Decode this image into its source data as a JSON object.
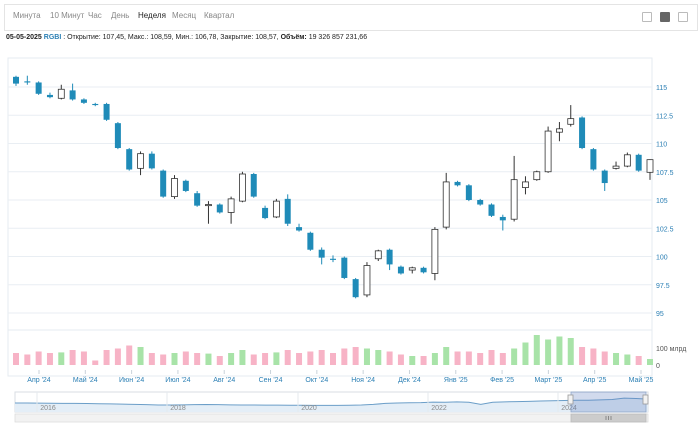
{
  "toolbar": {
    "tabs": [
      {
        "label": "Минута",
        "active": false
      },
      {
        "label": "10 Минут",
        "active": false
      },
      {
        "label": "Час",
        "active": false
      },
      {
        "label": "День",
        "active": false
      },
      {
        "label": "Неделя",
        "active": true
      },
      {
        "label": "Месяц",
        "active": false
      },
      {
        "label": "Квартал",
        "active": false
      }
    ],
    "tools": [
      "line-chart-icon",
      "candlestick-chart-icon",
      "bar-chart-icon"
    ]
  },
  "info": {
    "date": "05-05-2025",
    "ticker": "RGBI",
    "ohlc_text": " : Открытие: 107,45, Макс.: 108,59, Мин.: 106,78, Закрытие: 108,57, ",
    "volume_label": "Объём:",
    "volume_value": " 19 326 857 231,66"
  },
  "colors": {
    "down": "#1f8bb8",
    "up_fill": "#ffffff",
    "up_stroke": "#333333",
    "vol_up": "#a8e3a8",
    "vol_down": "#f7b3c6",
    "axis_text": "#2b7fb4",
    "grid": "#e9eef3"
  },
  "chart_data": {
    "type": "candlestick",
    "y_axis": {
      "min": 95,
      "max": 115,
      "ticks": [
        "115",
        "112.5",
        "110",
        "107.5",
        "105",
        "102.5",
        "100",
        "97.5",
        "95"
      ],
      "side": "right"
    },
    "volume_axis": {
      "ticks": [
        "100 млрд",
        "0"
      ]
    },
    "x_labels": [
      "Апр '24",
      "Май '24",
      "Июн '24",
      "Июл '24",
      "Авг '24",
      "Сен '24",
      "Окт '24",
      "Ноя '24",
      "Дек '24",
      "Янв '25",
      "Фев '25",
      "Март '25",
      "Апр '25",
      "Май '25"
    ],
    "candles": [
      {
        "o": 115.9,
        "h": 116.0,
        "l": 115.1,
        "c": 115.3,
        "v": 40
      },
      {
        "o": 115.5,
        "h": 116.0,
        "l": 115.2,
        "c": 115.4,
        "v": 35
      },
      {
        "o": 115.4,
        "h": 115.5,
        "l": 114.3,
        "c": 114.4,
        "v": 45
      },
      {
        "o": 114.3,
        "h": 114.5,
        "l": 114.0,
        "c": 114.1,
        "v": 40
      },
      {
        "o": 114.0,
        "h": 115.2,
        "l": 113.9,
        "c": 114.8,
        "v": 42
      },
      {
        "o": 114.7,
        "h": 115.3,
        "l": 113.8,
        "c": 113.9,
        "v": 50
      },
      {
        "o": 113.9,
        "h": 114.0,
        "l": 113.5,
        "c": 113.6,
        "v": 45
      },
      {
        "o": 113.5,
        "h": 113.6,
        "l": 113.3,
        "c": 113.4,
        "v": 15
      },
      {
        "o": 113.5,
        "h": 113.6,
        "l": 112.0,
        "c": 112.1,
        "v": 50
      },
      {
        "o": 111.8,
        "h": 111.9,
        "l": 109.5,
        "c": 109.6,
        "v": 55
      },
      {
        "o": 109.5,
        "h": 109.6,
        "l": 107.6,
        "c": 107.7,
        "v": 65
      },
      {
        "o": 107.8,
        "h": 109.3,
        "l": 107.2,
        "c": 109.1,
        "v": 60
      },
      {
        "o": 109.1,
        "h": 109.3,
        "l": 107.7,
        "c": 107.8,
        "v": 40
      },
      {
        "o": 107.6,
        "h": 107.7,
        "l": 105.2,
        "c": 105.3,
        "v": 35
      },
      {
        "o": 105.3,
        "h": 107.2,
        "l": 105.1,
        "c": 106.9,
        "v": 40
      },
      {
        "o": 106.7,
        "h": 106.8,
        "l": 105.7,
        "c": 105.8,
        "v": 45
      },
      {
        "o": 105.6,
        "h": 105.8,
        "l": 104.4,
        "c": 104.5,
        "v": 40
      },
      {
        "o": 104.5,
        "h": 104.9,
        "l": 102.9,
        "c": 104.6,
        "v": 38
      },
      {
        "o": 104.6,
        "h": 104.7,
        "l": 103.8,
        "c": 103.9,
        "v": 30
      },
      {
        "o": 103.9,
        "h": 105.3,
        "l": 102.9,
        "c": 105.1,
        "v": 40
      },
      {
        "o": 104.9,
        "h": 107.5,
        "l": 104.8,
        "c": 107.3,
        "v": 50
      },
      {
        "o": 107.3,
        "h": 107.4,
        "l": 105.2,
        "c": 105.3,
        "v": 35
      },
      {
        "o": 104.3,
        "h": 104.5,
        "l": 103.3,
        "c": 103.4,
        "v": 40
      },
      {
        "o": 103.5,
        "h": 105.1,
        "l": 103.4,
        "c": 104.9,
        "v": 42
      },
      {
        "o": 105.1,
        "h": 105.5,
        "l": 102.7,
        "c": 102.9,
        "v": 50
      },
      {
        "o": 102.6,
        "h": 102.9,
        "l": 102.2,
        "c": 102.3,
        "v": 40
      },
      {
        "o": 102.1,
        "h": 102.2,
        "l": 100.5,
        "c": 100.6,
        "v": 45
      },
      {
        "o": 100.6,
        "h": 100.8,
        "l": 99.3,
        "c": 99.9,
        "v": 50
      },
      {
        "o": 99.8,
        "h": 100.1,
        "l": 99.5,
        "c": 99.7,
        "v": 40
      },
      {
        "o": 99.9,
        "h": 100.0,
        "l": 98.0,
        "c": 98.1,
        "v": 55
      },
      {
        "o": 98.0,
        "h": 98.1,
        "l": 96.3,
        "c": 96.4,
        "v": 60
      },
      {
        "o": 96.6,
        "h": 99.5,
        "l": 96.4,
        "c": 99.2,
        "v": 55
      },
      {
        "o": 99.8,
        "h": 100.6,
        "l": 99.6,
        "c": 100.5,
        "v": 50
      },
      {
        "o": 100.6,
        "h": 100.7,
        "l": 98.8,
        "c": 99.3,
        "v": 45
      },
      {
        "o": 99.1,
        "h": 99.2,
        "l": 98.4,
        "c": 98.5,
        "v": 35
      },
      {
        "o": 98.8,
        "h": 99.1,
        "l": 98.5,
        "c": 99.0,
        "v": 30
      },
      {
        "o": 99.0,
        "h": 99.1,
        "l": 98.5,
        "c": 98.6,
        "v": 30
      },
      {
        "o": 98.5,
        "h": 102.6,
        "l": 97.9,
        "c": 102.4,
        "v": 40
      },
      {
        "o": 102.6,
        "h": 107.4,
        "l": 102.4,
        "c": 106.6,
        "v": 60
      },
      {
        "o": 106.6,
        "h": 106.7,
        "l": 106.2,
        "c": 106.3,
        "v": 45
      },
      {
        "o": 106.3,
        "h": 106.4,
        "l": 104.9,
        "c": 105.0,
        "v": 45
      },
      {
        "o": 105.0,
        "h": 105.1,
        "l": 104.5,
        "c": 104.6,
        "v": 40
      },
      {
        "o": 104.6,
        "h": 104.7,
        "l": 103.5,
        "c": 103.6,
        "v": 50
      },
      {
        "o": 103.5,
        "h": 103.7,
        "l": 102.3,
        "c": 103.2,
        "v": 40
      },
      {
        "o": 103.3,
        "h": 108.9,
        "l": 103.1,
        "c": 106.8,
        "v": 55
      },
      {
        "o": 106.1,
        "h": 107.1,
        "l": 105.5,
        "c": 106.6,
        "v": 75
      },
      {
        "o": 106.8,
        "h": 107.6,
        "l": 106.7,
        "c": 107.5,
        "v": 100
      },
      {
        "o": 107.5,
        "h": 111.5,
        "l": 107.4,
        "c": 111.1,
        "v": 85
      },
      {
        "o": 111.0,
        "h": 111.9,
        "l": 110.2,
        "c": 111.3,
        "v": 95
      },
      {
        "o": 111.7,
        "h": 113.4,
        "l": 111.5,
        "c": 112.2,
        "v": 90
      },
      {
        "o": 112.3,
        "h": 112.4,
        "l": 109.5,
        "c": 109.6,
        "v": 60
      },
      {
        "o": 109.5,
        "h": 109.6,
        "l": 107.6,
        "c": 107.7,
        "v": 55
      },
      {
        "o": 107.6,
        "h": 107.7,
        "l": 105.8,
        "c": 106.5,
        "v": 45
      },
      {
        "o": 107.8,
        "h": 108.4,
        "l": 107.7,
        "c": 108.0,
        "v": 40
      },
      {
        "o": 108.0,
        "h": 109.2,
        "l": 107.9,
        "c": 109.0,
        "v": 35
      },
      {
        "o": 109.0,
        "h": 109.1,
        "l": 107.5,
        "c": 107.6,
        "v": 30
      },
      {
        "o": 107.45,
        "h": 108.59,
        "l": 106.78,
        "c": 108.57,
        "v": 20
      }
    ],
    "navigator": {
      "years": [
        "2016",
        "2018",
        "2020",
        "2022",
        "2024"
      ],
      "series": [
        0.5,
        0.5,
        0.49,
        0.48,
        0.47,
        0.47,
        0.46,
        0.45,
        0.44,
        0.42,
        0.4,
        0.38,
        0.36,
        0.36,
        0.37,
        0.38,
        0.39,
        0.38,
        0.37,
        0.36,
        0.36,
        0.35,
        0.35,
        0.34,
        0.34,
        0.33,
        0.33,
        0.33,
        0.34,
        0.36,
        0.4,
        0.47,
        0.5,
        0.52,
        0.53,
        0.56,
        0.55,
        0.58,
        0.55,
        0.4,
        0.55,
        0.58,
        0.6,
        0.62,
        0.64,
        0.66,
        0.68,
        0.7,
        0.7,
        0.72,
        0.75,
        0.85,
        0.82,
        0.78
      ]
    }
  }
}
